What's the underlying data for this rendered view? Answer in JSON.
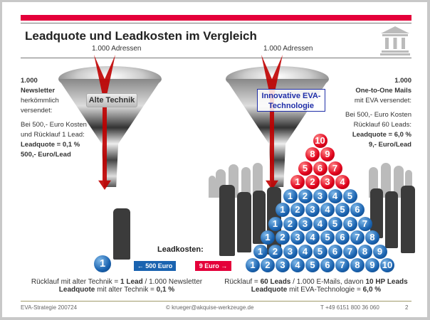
{
  "title": "Leadquote und Leadkosten im Vergleich",
  "left": {
    "addresses": "1.000 Adressen",
    "label": "Alte Technik",
    "info": {
      "l1": "1.000",
      "l2": "Newsletter",
      "l3": "herkömmlich",
      "l4": "versendet:",
      "l5": "Bei 500,- Euro Kosten",
      "l6": "und Rücklauf 1 Lead:",
      "l7": "Leadquote = 0,1 %",
      "l8": "500,- Euro/Lead"
    },
    "cost": "← 500 Euro",
    "ball": "1"
  },
  "right": {
    "addresses": "1.000 Adressen",
    "label": "Innovative EVA-Technologie",
    "info": {
      "l1": "1.000",
      "l2": "One-to-One Mails",
      "l3": "mit EVA versendet:",
      "l5": "Bei 500,- Euro Kosten",
      "l6": "Rücklauf 60 Leads:",
      "l7": "Leadquote = 6,0 %",
      "l8": "9,- Euro/Lead"
    },
    "cost": "9 Euro →"
  },
  "leadkosten": "Leadkosten:",
  "summary_left": {
    "a": "Rücklauf mit alter Technik = ",
    "b": "1 Lead",
    "c": " / 1.000 Newsletter",
    "d": "Leadquote",
    "e": " mit alter Technik = ",
    "f": "0,1 %"
  },
  "summary_right": {
    "a": "Rücklauf = ",
    "b": "60 Leads",
    "c": " / 1.000 E-Mails, davon ",
    "d": "10 HP Leads",
    "e": "Leadquote",
    "f": " mit EVA-Technologie = ",
    "g": "6,0 %"
  },
  "footer": {
    "left": "EVA-Strategie 200724",
    "center": "© krueger@akquise-werkzeuge.de",
    "phone": "T  +49 6151 800 36 060",
    "page": "2"
  },
  "colors": {
    "accent": "#e4003a",
    "blue": "#1a63b0",
    "navy": "#1f2ea8"
  },
  "icons": [
    "bank-building-icon",
    "funnel-icon",
    "down-arrow-icon"
  ]
}
